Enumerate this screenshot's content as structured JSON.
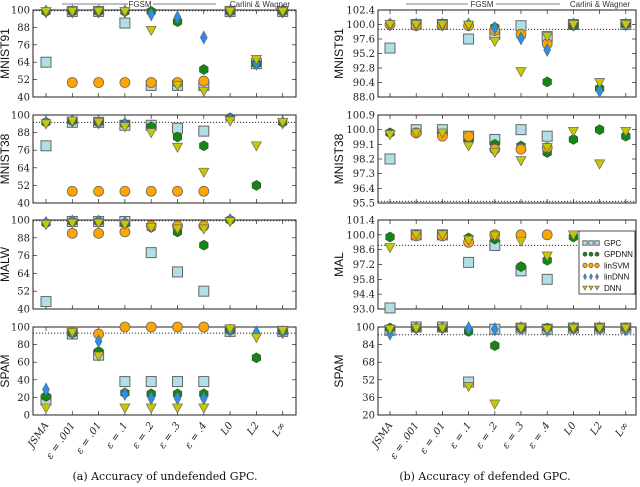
{
  "figure": {
    "captions": [
      "(a) Accuracy of undefended GPC.",
      "(b) Accuracy of defended GPC."
    ],
    "group_labels": {
      "fgsm": "FGSM",
      "cw": "Carlini & Wagner"
    }
  },
  "legend": {
    "placement": "right, inside the MAL panel of (b)",
    "entries": [
      "GPC",
      "GPDNN",
      "linSVM",
      "linDNN",
      "DNN"
    ]
  },
  "chart_data": [
    {
      "type": "scatter",
      "panel": "a",
      "ylabel": "MNIST91",
      "ylim": [
        40,
        100
      ],
      "yticks": [
        "40",
        "52",
        "64",
        "76",
        "88",
        "100"
      ],
      "reference_line": 99.5,
      "categories": [
        "JSMA",
        "ε = .001",
        "ε = .01",
        "ε = .1",
        "ε = .2",
        "ε = .3",
        "ε = .4",
        "L0",
        "L2",
        "L∞"
      ],
      "series": [
        {
          "name": "GPC",
          "marker": "square",
          "color": "#b0e0e6",
          "values": [
            64,
            99,
            99,
            91,
            48,
            48,
            48,
            99,
            63,
            99
          ]
        },
        {
          "name": "GPDNN",
          "marker": "hexagon",
          "color": "#118811",
          "values": [
            99,
            99,
            99,
            99,
            99,
            92,
            59,
            99,
            63,
            99
          ]
        },
        {
          "name": "linSVM",
          "marker": "circle",
          "color": "#ffa500",
          "values": [
            null,
            50,
            50,
            50,
            50,
            50,
            51,
            null,
            null,
            null
          ]
        },
        {
          "name": "linDNN",
          "marker": "diamond",
          "color": "#2a8fe8",
          "values": [
            99,
            99,
            99,
            99,
            97,
            95,
            81,
            99,
            63,
            99
          ]
        },
        {
          "name": "DNN",
          "marker": "triangle-down",
          "color": "#c8c800",
          "values": [
            99,
            99,
            99,
            99,
            86,
            48,
            44,
            99,
            66,
            99
          ]
        }
      ]
    },
    {
      "type": "scatter",
      "panel": "a",
      "ylabel": "MNIST38",
      "ylim": [
        40,
        100
      ],
      "yticks": [
        "40",
        "52",
        "64",
        "76",
        "88",
        "100"
      ],
      "reference_line": 95,
      "categories": [
        "JSMA",
        "ε = .001",
        "ε = .01",
        "ε = .1",
        "ε = .2",
        "ε = .3",
        "ε = .4",
        "L0",
        "L2",
        "L∞"
      ],
      "series": [
        {
          "name": "GPC",
          "marker": "square",
          "color": "#b0e0e6",
          "values": [
            79,
            95,
            95,
            93,
            93,
            91,
            89,
            null,
            null,
            null
          ]
        },
        {
          "name": "GPDNN",
          "marker": "hexagon",
          "color": "#118811",
          "values": [
            95,
            96,
            95,
            94,
            92,
            85,
            79,
            98,
            52,
            95
          ]
        },
        {
          "name": "linSVM",
          "marker": "circle",
          "color": "#ffa500",
          "values": [
            null,
            48,
            48,
            48,
            48,
            48,
            48,
            null,
            null,
            null
          ]
        },
        {
          "name": "linDNN",
          "marker": "diamond",
          "color": "#2a8fe8",
          "values": [
            95,
            96,
            95,
            94,
            null,
            null,
            null,
            97,
            null,
            95
          ]
        },
        {
          "name": "DNN",
          "marker": "triangle-down",
          "color": "#c8c800",
          "values": [
            94,
            96,
            95,
            92,
            88,
            78,
            61,
            96,
            79,
            95
          ]
        }
      ]
    },
    {
      "type": "scatter",
      "panel": "a",
      "ylabel": "MALW",
      "ylim": [
        40,
        100
      ],
      "yticks": [
        "40",
        "52",
        "64",
        "76",
        "88",
        "100"
      ],
      "reference_line": 99.5,
      "categories": [
        "JSMA",
        "ε = .001",
        "ε = .01",
        "ε = .1",
        "ε = .2",
        "ε = .3",
        "ε = .4",
        "L0",
        "L2",
        "L∞"
      ],
      "series": [
        {
          "name": "GPC",
          "marker": "square",
          "color": "#b0e0e6",
          "values": [
            45,
            99,
            99,
            99,
            78,
            65,
            52,
            null,
            null,
            null
          ]
        },
        {
          "name": "GPDNN",
          "marker": "hexagon",
          "color": "#118811",
          "values": [
            98,
            99,
            99,
            98,
            95,
            92,
            83,
            100,
            null,
            null
          ]
        },
        {
          "name": "linSVM",
          "marker": "circle",
          "color": "#ffa500",
          "values": [
            null,
            91,
            91,
            92,
            96,
            96,
            96,
            null,
            null,
            null
          ]
        },
        {
          "name": "linDNN",
          "marker": "diamond",
          "color": "#2a8fe8",
          "values": [
            98,
            99,
            99,
            98,
            null,
            null,
            null,
            100,
            null,
            null
          ]
        },
        {
          "name": "DNN",
          "marker": "triangle-down",
          "color": "#c8c800",
          "values": [
            97,
            98,
            98,
            97,
            95,
            94,
            94,
            99,
            null,
            null
          ]
        }
      ]
    },
    {
      "type": "scatter",
      "panel": "a",
      "ylabel": "SPAM",
      "ylim": [
        0,
        100
      ],
      "yticks": [
        "0",
        "20",
        "40",
        "60",
        "80",
        "100"
      ],
      "reference_line": 93,
      "categories": [
        "JSMA",
        "ε = .001",
        "ε = .01",
        "ε = .1",
        "ε = .2",
        "ε = .3",
        "ε = .4",
        "L0",
        "L2",
        "L∞"
      ],
      "series": [
        {
          "name": "GPC",
          "marker": "square",
          "color": "#b0e0e6",
          "values": [
            17,
            92,
            68,
            38,
            38,
            38,
            38,
            95,
            null,
            95
          ]
        },
        {
          "name": "GPDNN",
          "marker": "hexagon",
          "color": "#118811",
          "values": [
            21,
            93,
            72,
            25,
            24,
            24,
            24,
            96,
            65,
            95
          ]
        },
        {
          "name": "linSVM",
          "marker": "circle",
          "color": "#ffa500",
          "values": [
            null,
            null,
            92,
            100,
            100,
            100,
            100,
            null,
            null,
            null
          ]
        },
        {
          "name": "linDNN",
          "marker": "diamond",
          "color": "#2a8fe8",
          "values": [
            29,
            93,
            84,
            24,
            19,
            19,
            19,
            96,
            94,
            94
          ]
        },
        {
          "name": "DNN",
          "marker": "triangle-down",
          "color": "#c8c800",
          "values": [
            8,
            94,
            67,
            8,
            8,
            8,
            8,
            98,
            88,
            96
          ]
        }
      ]
    },
    {
      "type": "scatter",
      "panel": "b",
      "ylabel": "MNIST91",
      "ylim": [
        88.0,
        102.4
      ],
      "yticks": [
        "88.0",
        "90.4",
        "92.8",
        "95.2",
        "97.6",
        "100.0",
        "102.4"
      ],
      "reference_line": 99.2,
      "categories": [
        "JSMA",
        "ε = .001",
        "ε = .01",
        "ε = .1",
        "ε = .2",
        "ε = .3",
        "ε = .4",
        "L0",
        "L2",
        "L∞"
      ],
      "series": [
        {
          "name": "GPC",
          "marker": "square",
          "color": "#b0e0e6",
          "values": [
            96.1,
            100,
            100,
            97.6,
            98.4,
            99.8,
            98.0,
            100,
            null,
            100
          ]
        },
        {
          "name": "GPDNN",
          "marker": "hexagon",
          "color": "#118811",
          "values": [
            100,
            100,
            100,
            100,
            99.5,
            98.2,
            90.5,
            99.8,
            89.4,
            100
          ]
        },
        {
          "name": "linSVM",
          "marker": "circle",
          "color": "#ffa500",
          "values": [
            100,
            99.8,
            99.9,
            99.8,
            99.0,
            98.4,
            96.8,
            null,
            null,
            null
          ]
        },
        {
          "name": "linDNN",
          "marker": "diamond",
          "color": "#2a8fe8",
          "values": [
            100,
            100,
            100,
            100,
            99.4,
            97.7,
            95.8,
            100,
            89.0,
            100
          ]
        },
        {
          "name": "DNN",
          "marker": "triangle-down",
          "color": "#c8c800",
          "values": [
            100,
            100,
            100,
            99.9,
            97.2,
            92.2,
            98.0,
            100,
            90.4,
            100
          ]
        }
      ]
    },
    {
      "type": "scatter",
      "panel": "b",
      "ylabel": "MNIST38",
      "ylim": [
        95.5,
        100.9
      ],
      "yticks": [
        "95.5",
        "96.4",
        "97.3",
        "98.2",
        "99.1",
        "100.0",
        "100.9"
      ],
      "reference_line": 95.6,
      "categories": [
        "JSMA",
        "ε = .001",
        "ε = .01",
        "ε = .1",
        "ε = .2",
        "ε = .3",
        "ε = .4",
        "L0",
        "L2",
        "L∞"
      ],
      "series": [
        {
          "name": "GPC",
          "marker": "square",
          "color": "#b0e0e6",
          "values": [
            98.2,
            100,
            100,
            99.6,
            99.4,
            100,
            99.6,
            null,
            null,
            null
          ]
        },
        {
          "name": "GPDNN",
          "marker": "hexagon",
          "color": "#118811",
          "values": [
            99.8,
            99.8,
            99.7,
            99.4,
            99.1,
            99.0,
            98.6,
            99.4,
            100,
            99.6
          ]
        },
        {
          "name": "linSVM",
          "marker": "circle",
          "color": "#ffa500",
          "values": [
            null,
            99.8,
            99.6,
            99.6,
            98.8,
            98.8,
            98.9,
            null,
            null,
            null
          ]
        },
        {
          "name": "linDNN",
          "marker": "diamond",
          "color": "#2a8fe8",
          "values": [
            null,
            null,
            null,
            null,
            null,
            null,
            null,
            null,
            null,
            null
          ]
        },
        {
          "name": "DNN",
          "marker": "triangle-down",
          "color": "#c8c800",
          "values": [
            99.7,
            99.8,
            99.8,
            99.0,
            98.6,
            98.1,
            98.9,
            99.9,
            97.9,
            99.9
          ]
        }
      ]
    },
    {
      "type": "scatter",
      "panel": "b",
      "ylabel": "MAL",
      "ylim": [
        93.0,
        101.4
      ],
      "yticks": [
        "93.0",
        "94.4",
        "95.8",
        "97.2",
        "98.6",
        "100.0",
        "101.4"
      ],
      "reference_line": 99.0,
      "categories": [
        "JSMA",
        "ε = .001",
        "ε = .01",
        "ε = .1",
        "ε = .2",
        "ε = .3",
        "ε = .4",
        "L0",
        "L2",
        "L∞"
      ],
      "series": [
        {
          "name": "GPC",
          "marker": "square",
          "color": "#b0e0e6",
          "values": [
            93.1,
            100,
            100,
            97.4,
            99.0,
            96.6,
            95.8,
            null,
            null,
            null
          ]
        },
        {
          "name": "GPDNN",
          "marker": "hexagon",
          "color": "#118811",
          "values": [
            99.8,
            100,
            100,
            99.7,
            99.6,
            97.0,
            97.6,
            99.8,
            null,
            null
          ]
        },
        {
          "name": "linSVM",
          "marker": "circle",
          "color": "#ffa500",
          "values": [
            null,
            99.9,
            99.9,
            99.3,
            100,
            100,
            100,
            null,
            null,
            null
          ]
        },
        {
          "name": "linDNN",
          "marker": "diamond",
          "color": "#2a8fe8",
          "values": [
            null,
            null,
            null,
            null,
            null,
            null,
            null,
            null,
            null,
            null
          ]
        },
        {
          "name": "DNN",
          "marker": "triangle-down",
          "color": "#c8c800",
          "values": [
            98.8,
            100,
            100,
            99.5,
            99.9,
            99.4,
            98.0,
            100,
            null,
            null
          ]
        }
      ]
    },
    {
      "type": "scatter",
      "panel": "b",
      "ylabel": "SPAM",
      "ylim": [
        20,
        100
      ],
      "yticks": [
        "20",
        "36",
        "52",
        "68",
        "84",
        "100"
      ],
      "reference_line": 93,
      "categories": [
        "JSMA",
        "ε = .001",
        "ε = .01",
        "ε = .1",
        "ε = .2",
        "ε = .3",
        "ε = .4",
        "L0",
        "L2",
        "L∞"
      ],
      "series": [
        {
          "name": "GPC",
          "marker": "square",
          "color": "#b0e0e6",
          "values": [
            97,
            100,
            100,
            50,
            98,
            99,
            98,
            99,
            99,
            99
          ]
        },
        {
          "name": "GPDNN",
          "marker": "hexagon",
          "color": "#118811",
          "values": [
            99,
            99,
            99,
            96,
            83,
            99,
            99,
            99,
            99,
            99
          ]
        },
        {
          "name": "linSVM",
          "marker": "circle",
          "color": "#ffa500",
          "values": [
            null,
            null,
            null,
            null,
            null,
            null,
            null,
            null,
            null,
            null
          ]
        },
        {
          "name": "linDNN",
          "marker": "diamond",
          "color": "#2a8fe8",
          "values": [
            94,
            99,
            99,
            99,
            98,
            99,
            97,
            99,
            99,
            98
          ]
        },
        {
          "name": "DNN",
          "marker": "triangle-down",
          "color": "#c8c800",
          "values": [
            98,
            99,
            99,
            46,
            30,
            99,
            98,
            99,
            99,
            99
          ]
        }
      ]
    }
  ]
}
